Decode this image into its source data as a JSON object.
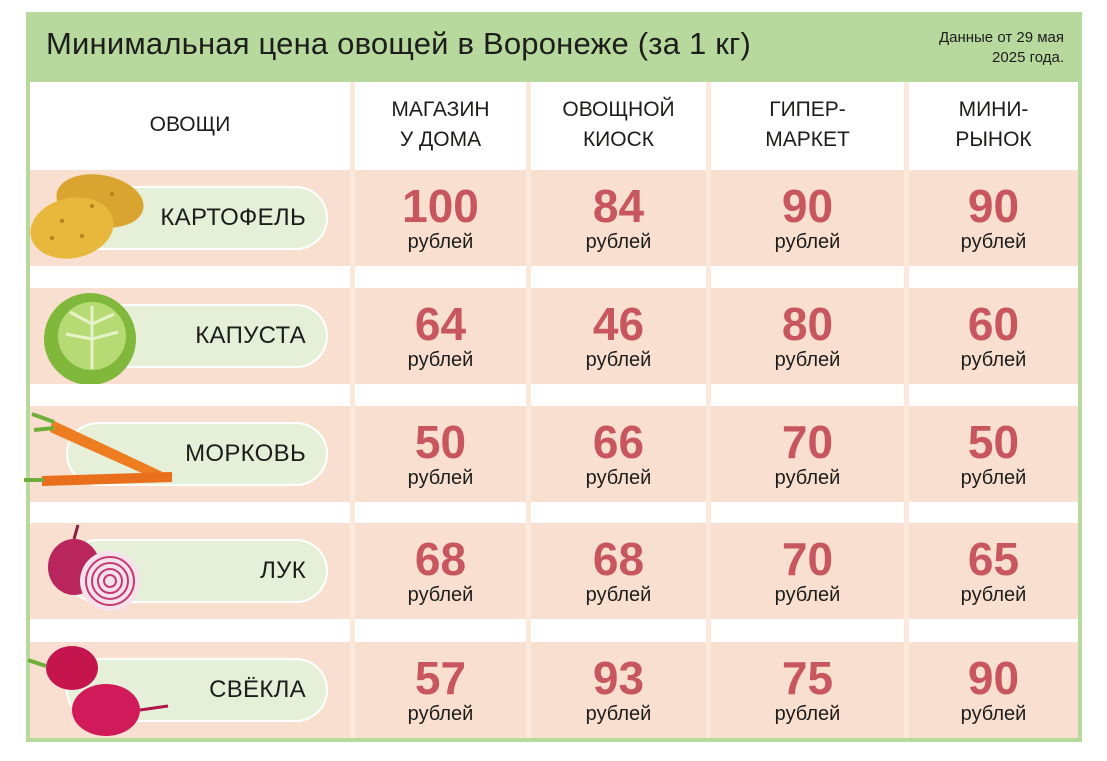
{
  "header": {
    "title": "Минимальная цена овощей в Воронеже (за 1 кг)",
    "note_line1": "Данные от 29 мая",
    "note_line2": "2025 года."
  },
  "colors": {
    "frame": "#b7d99e",
    "row_band": "#f9dfcf",
    "price": "#c8565f",
    "pill": "#e6f0d8"
  },
  "chart_data": {
    "type": "table",
    "title": "Минимальная цена овощей в Воронеже (за 1 кг)",
    "row_header": "ОВОЩИ",
    "columns": [
      {
        "line1": "МАГАЗИН",
        "line2": "У ДОМА"
      },
      {
        "line1": "ОВОЩНОЙ",
        "line2": "КИОСК"
      },
      {
        "line1": "ГИПЕР-",
        "line2": "МАРКЕТ"
      },
      {
        "line1": "МИНИ-",
        "line2": "РЫНОК"
      }
    ],
    "unit": "рублей",
    "rows": [
      {
        "name": "КАРТОФЕЛЬ",
        "icon": "potato-icon",
        "values": [
          100,
          84,
          90,
          90
        ]
      },
      {
        "name": "КАПУСТА",
        "icon": "cabbage-icon",
        "values": [
          64,
          46,
          80,
          60
        ]
      },
      {
        "name": "МОРКОВЬ",
        "icon": "carrot-icon",
        "values": [
          50,
          66,
          70,
          50
        ]
      },
      {
        "name": "ЛУК",
        "icon": "onion-icon",
        "values": [
          68,
          68,
          70,
          65
        ]
      },
      {
        "name": "СВЁКЛА",
        "icon": "beetroot-icon",
        "values": [
          57,
          93,
          75,
          90
        ]
      }
    ]
  }
}
